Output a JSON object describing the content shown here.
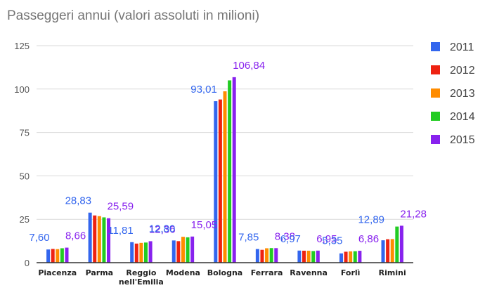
{
  "chart_data": {
    "type": "bar",
    "title": "Passeggeri annui (valori assoluti in milioni)",
    "xlabel": "",
    "ylabel": "",
    "ylim": [
      0,
      125
    ],
    "yticks": [
      0,
      25,
      50,
      75,
      100,
      125
    ],
    "grid": true,
    "legend_position": "right",
    "categories": [
      [
        "Piacenza"
      ],
      [
        "Parma"
      ],
      [
        "Reggio",
        "nell'Emilia"
      ],
      [
        "Modena"
      ],
      [
        "Bologna"
      ],
      [
        "Ferrara"
      ],
      [
        "Ravenna"
      ],
      [
        "Forlì"
      ],
      [
        "Rimini"
      ]
    ],
    "series": [
      {
        "name": "2011",
        "color": "#3366ee",
        "values": [
          7.6,
          28.83,
          11.81,
          12.8,
          93.01,
          7.85,
          6.97,
          5.35,
          12.89
        ],
        "labels": [
          "7,60",
          "28,83",
          "11,81",
          "12,80",
          "93,01",
          "7,85",
          "6,97",
          "5,35",
          "12,89"
        ]
      },
      {
        "name": "2012",
        "color": "#ee2211",
        "values": [
          7.9,
          27.2,
          11.0,
          12.4,
          94.0,
          7.4,
          6.9,
          6.3,
          13.5
        ],
        "labels": []
      },
      {
        "name": "2013",
        "color": "#ff8c00",
        "values": [
          7.8,
          26.8,
          11.4,
          14.9,
          98.7,
          8.3,
          6.9,
          6.5,
          13.6
        ],
        "labels": []
      },
      {
        "name": "2014",
        "color": "#22cc22",
        "values": [
          8.3,
          26.1,
          11.6,
          14.6,
          105.0,
          8.4,
          6.7,
          6.6,
          20.8
        ],
        "labels": []
      },
      {
        "name": "2015",
        "color": "#8822ee",
        "values": [
          8.66,
          25.59,
          12.36,
          15.05,
          106.84,
          8.38,
          6.95,
          6.86,
          21.28
        ],
        "labels": [
          "8,66",
          "25,59",
          "12,36",
          "15,05",
          "106,84",
          "8,38",
          "6,95",
          "6,86",
          "21,28"
        ]
      }
    ]
  }
}
